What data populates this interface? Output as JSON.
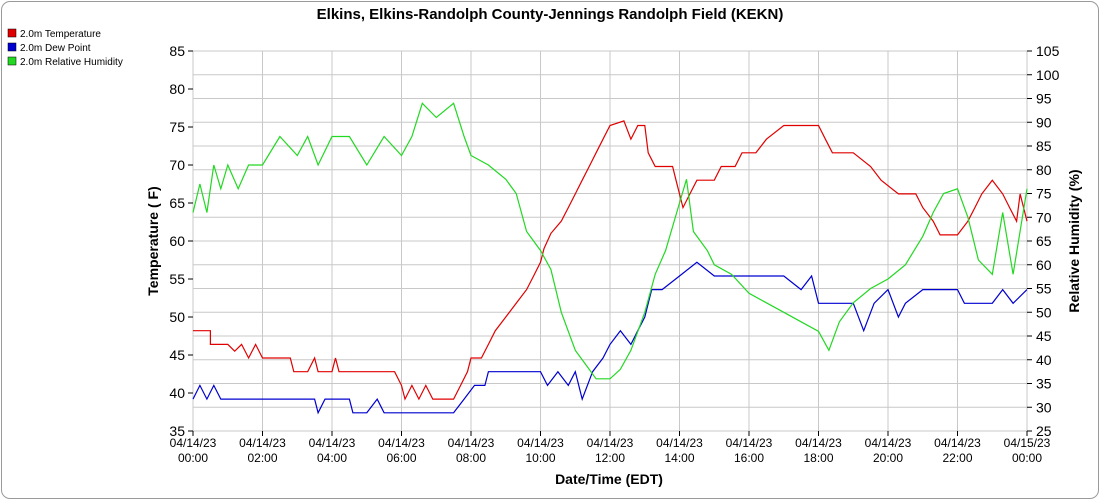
{
  "chart_data": {
    "type": "line",
    "title": "Elkins, Elkins-Randolph County-Jennings Randolph Field (KEKN)",
    "xlabel": "Date/Time (EDT)",
    "ylabel_left": "Temperature ( F)",
    "ylabel_right": "Relative Humidity (%)",
    "ylim_left": [
      35,
      85
    ],
    "ylim_right": [
      25,
      105
    ],
    "yticks_left": [
      "35",
      "40",
      "45",
      "50",
      "55",
      "60",
      "65",
      "70",
      "75",
      "80",
      "85"
    ],
    "yticks_right": [
      "25",
      "30",
      "35",
      "40",
      "45",
      "50",
      "55",
      "60",
      "65",
      "70",
      "75",
      "80",
      "85",
      "90",
      "95",
      "100",
      "105"
    ],
    "x_range_hours": [
      0,
      24
    ],
    "x_ticks": [
      {
        "date": "04/14/23",
        "time": "00:00"
      },
      {
        "date": "04/14/23",
        "time": "02:00"
      },
      {
        "date": "04/14/23",
        "time": "04:00"
      },
      {
        "date": "04/14/23",
        "time": "06:00"
      },
      {
        "date": "04/14/23",
        "time": "08:00"
      },
      {
        "date": "04/14/23",
        "time": "10:00"
      },
      {
        "date": "04/14/23",
        "time": "12:00"
      },
      {
        "date": "04/14/23",
        "time": "14:00"
      },
      {
        "date": "04/14/23",
        "time": "16:00"
      },
      {
        "date": "04/14/23",
        "time": "18:00"
      },
      {
        "date": "04/14/23",
        "time": "20:00"
      },
      {
        "date": "04/14/23",
        "time": "22:00"
      },
      {
        "date": "04/15/23",
        "time": "00:00"
      }
    ],
    "grid": true,
    "legend_position": "top-left",
    "series": [
      {
        "name": "2.0m Temperature",
        "color": "#e00000",
        "axis": "left",
        "points": [
          [
            0,
            48.2
          ],
          [
            0.5,
            48.2
          ],
          [
            0.5,
            46.4
          ],
          [
            1,
            46.4
          ],
          [
            1.2,
            45.5
          ],
          [
            1.4,
            46.4
          ],
          [
            1.6,
            44.6
          ],
          [
            1.8,
            46.4
          ],
          [
            2,
            44.6
          ],
          [
            2.5,
            44.6
          ],
          [
            2.8,
            44.6
          ],
          [
            2.9,
            42.8
          ],
          [
            3.3,
            42.8
          ],
          [
            3.5,
            44.6
          ],
          [
            3.6,
            42.8
          ],
          [
            4.0,
            42.8
          ],
          [
            4.1,
            44.6
          ],
          [
            4.2,
            42.8
          ],
          [
            5.5,
            42.8
          ],
          [
            5.8,
            42.8
          ],
          [
            6.0,
            41.0
          ],
          [
            6.1,
            39.2
          ],
          [
            6.3,
            41.0
          ],
          [
            6.5,
            39.2
          ],
          [
            6.7,
            41.0
          ],
          [
            6.9,
            39.2
          ],
          [
            7.5,
            39.2
          ],
          [
            7.7,
            41.0
          ],
          [
            7.9,
            42.8
          ],
          [
            8.0,
            44.6
          ],
          [
            8.3,
            44.6
          ],
          [
            8.5,
            46.4
          ],
          [
            8.7,
            48.2
          ],
          [
            9.0,
            50.0
          ],
          [
            9.3,
            51.8
          ],
          [
            9.6,
            53.6
          ],
          [
            9.8,
            55.4
          ],
          [
            10.0,
            57.2
          ],
          [
            10.1,
            59.0
          ],
          [
            10.3,
            61.0
          ],
          [
            10.6,
            62.6
          ],
          [
            10.8,
            64.4
          ],
          [
            11.0,
            66.2
          ],
          [
            11.2,
            68.0
          ],
          [
            11.4,
            69.8
          ],
          [
            11.6,
            71.6
          ],
          [
            11.8,
            73.4
          ],
          [
            12.0,
            75.2
          ],
          [
            12.4,
            75.8
          ],
          [
            12.6,
            73.4
          ],
          [
            12.8,
            75.2
          ],
          [
            13.0,
            75.2
          ],
          [
            13.1,
            71.6
          ],
          [
            13.3,
            69.8
          ],
          [
            13.8,
            69.8
          ],
          [
            13.9,
            68.0
          ],
          [
            14.0,
            66.2
          ],
          [
            14.1,
            64.4
          ],
          [
            14.3,
            66.2
          ],
          [
            14.5,
            68.0
          ],
          [
            15.0,
            68.0
          ],
          [
            15.2,
            69.8
          ],
          [
            15.6,
            69.8
          ],
          [
            15.8,
            71.6
          ],
          [
            16.2,
            71.6
          ],
          [
            16.5,
            73.4
          ],
          [
            17.0,
            75.2
          ],
          [
            18.0,
            75.2
          ],
          [
            18.2,
            73.4
          ],
          [
            18.4,
            71.6
          ],
          [
            19.0,
            71.6
          ],
          [
            19.5,
            69.8
          ],
          [
            19.8,
            68.0
          ],
          [
            20.3,
            66.2
          ],
          [
            20.8,
            66.2
          ],
          [
            21.0,
            64.4
          ],
          [
            21.3,
            62.6
          ],
          [
            21.5,
            60.8
          ],
          [
            22.0,
            60.8
          ],
          [
            22.3,
            62.6
          ],
          [
            22.5,
            64.4
          ],
          [
            22.7,
            66.2
          ],
          [
            23.0,
            68.0
          ],
          [
            23.3,
            66.2
          ],
          [
            23.5,
            64.4
          ],
          [
            23.7,
            62.6
          ],
          [
            23.8,
            66.2
          ],
          [
            24.0,
            62.6
          ]
        ]
      },
      {
        "name": "2.0m Dew Point",
        "color": "#0000d0",
        "axis": "left",
        "points": [
          [
            0,
            39.2
          ],
          [
            0.2,
            41.0
          ],
          [
            0.4,
            39.2
          ],
          [
            0.6,
            41.0
          ],
          [
            0.8,
            39.2
          ],
          [
            2.0,
            39.2
          ],
          [
            3.5,
            39.2
          ],
          [
            3.6,
            37.4
          ],
          [
            3.8,
            39.2
          ],
          [
            4.5,
            39.2
          ],
          [
            4.6,
            37.4
          ],
          [
            5.0,
            37.4
          ],
          [
            5.3,
            39.2
          ],
          [
            5.5,
            37.4
          ],
          [
            6.0,
            37.4
          ],
          [
            7.5,
            37.4
          ],
          [
            7.8,
            39.2
          ],
          [
            8.1,
            41.0
          ],
          [
            8.4,
            41.0
          ],
          [
            8.5,
            42.8
          ],
          [
            9.0,
            42.8
          ],
          [
            10.0,
            42.8
          ],
          [
            10.2,
            41.0
          ],
          [
            10.5,
            42.8
          ],
          [
            10.8,
            41.0
          ],
          [
            11.0,
            42.8
          ],
          [
            11.2,
            39.2
          ],
          [
            11.5,
            42.8
          ],
          [
            11.8,
            44.6
          ],
          [
            12.0,
            46.4
          ],
          [
            12.3,
            48.2
          ],
          [
            12.6,
            46.4
          ],
          [
            12.8,
            48.2
          ],
          [
            13.0,
            50.0
          ],
          [
            13.2,
            53.6
          ],
          [
            13.5,
            53.6
          ],
          [
            14.0,
            55.4
          ],
          [
            14.5,
            57.2
          ],
          [
            15.0,
            55.4
          ],
          [
            15.3,
            55.4
          ],
          [
            16.0,
            55.4
          ],
          [
            17.0,
            55.4
          ],
          [
            17.5,
            53.6
          ],
          [
            17.8,
            55.4
          ],
          [
            18.0,
            51.8
          ],
          [
            19.0,
            51.8
          ],
          [
            19.3,
            48.2
          ],
          [
            19.6,
            51.8
          ],
          [
            20.0,
            53.6
          ],
          [
            20.3,
            50.0
          ],
          [
            20.5,
            51.8
          ],
          [
            21.0,
            53.6
          ],
          [
            22.0,
            53.6
          ],
          [
            22.2,
            51.8
          ],
          [
            23.0,
            51.8
          ],
          [
            23.3,
            53.6
          ],
          [
            23.6,
            51.8
          ],
          [
            24.0,
            53.6
          ]
        ]
      },
      {
        "name": "2.0m Relative Humidity",
        "color": "#22d822",
        "axis": "right",
        "points": [
          [
            0,
            71
          ],
          [
            0.2,
            77
          ],
          [
            0.4,
            71
          ],
          [
            0.6,
            81
          ],
          [
            0.8,
            76
          ],
          [
            1.0,
            81
          ],
          [
            1.3,
            76
          ],
          [
            1.6,
            81
          ],
          [
            2.0,
            81
          ],
          [
            2.5,
            87
          ],
          [
            3.0,
            83
          ],
          [
            3.3,
            87
          ],
          [
            3.6,
            81
          ],
          [
            4.0,
            87
          ],
          [
            4.5,
            87
          ],
          [
            5.0,
            81
          ],
          [
            5.5,
            87
          ],
          [
            6.0,
            83
          ],
          [
            6.3,
            87
          ],
          [
            6.6,
            94
          ],
          [
            7.0,
            91
          ],
          [
            7.5,
            94
          ],
          [
            7.8,
            87
          ],
          [
            8.0,
            83
          ],
          [
            8.5,
            81
          ],
          [
            9.0,
            78
          ],
          [
            9.3,
            75
          ],
          [
            9.6,
            67
          ],
          [
            10.0,
            63
          ],
          [
            10.3,
            59
          ],
          [
            10.6,
            50
          ],
          [
            11.0,
            42
          ],
          [
            11.3,
            39
          ],
          [
            11.6,
            36
          ],
          [
            12.0,
            36
          ],
          [
            12.3,
            38
          ],
          [
            12.6,
            42
          ],
          [
            13.0,
            50
          ],
          [
            13.3,
            58
          ],
          [
            13.6,
            63
          ],
          [
            14.0,
            73
          ],
          [
            14.2,
            78
          ],
          [
            14.4,
            67
          ],
          [
            14.8,
            63
          ],
          [
            15.0,
            60
          ],
          [
            15.5,
            58
          ],
          [
            16.0,
            54
          ],
          [
            16.5,
            52
          ],
          [
            17.0,
            50
          ],
          [
            17.5,
            48
          ],
          [
            18.0,
            46
          ],
          [
            18.3,
            42
          ],
          [
            18.6,
            48
          ],
          [
            19.0,
            52
          ],
          [
            19.5,
            55
          ],
          [
            20.0,
            57
          ],
          [
            20.5,
            60
          ],
          [
            21.0,
            66
          ],
          [
            21.3,
            71
          ],
          [
            21.6,
            75
          ],
          [
            22.0,
            76
          ],
          [
            22.3,
            70
          ],
          [
            22.6,
            61
          ],
          [
            23.0,
            58
          ],
          [
            23.3,
            71
          ],
          [
            23.6,
            58
          ],
          [
            24.0,
            76
          ]
        ]
      }
    ]
  }
}
